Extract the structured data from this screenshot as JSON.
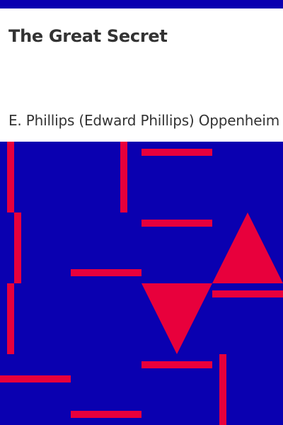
{
  "cover": {
    "title": "The Great Secret",
    "author": "E. Phillips (Edward Phillips) Oppenheim"
  },
  "colors": {
    "background_blue": "#0a00b0",
    "accent_red": "#e8003c",
    "panel_white": "#ffffff",
    "text": "#333333"
  }
}
